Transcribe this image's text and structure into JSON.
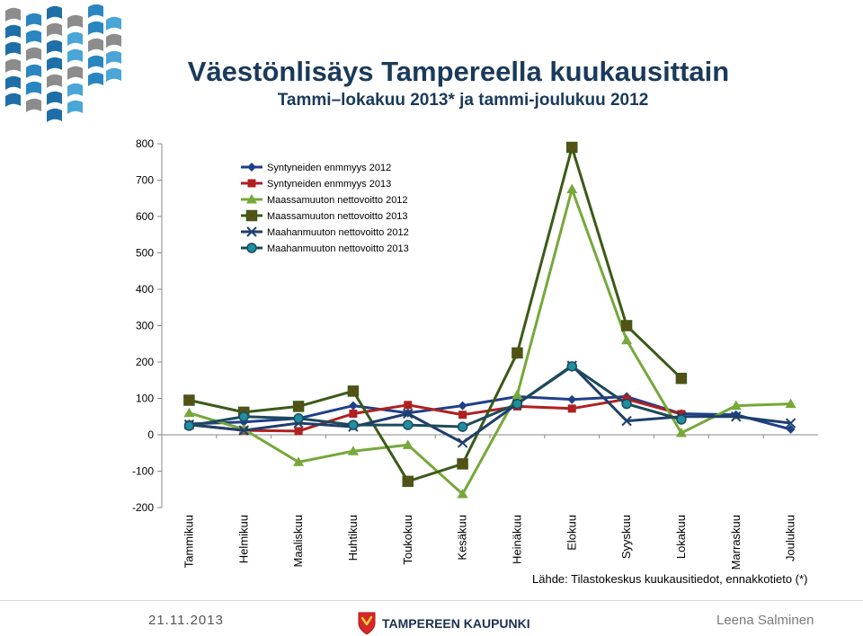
{
  "header": {
    "title": "Väestönlisäys Tampereella kuukausittain",
    "subtitle": "Tammi–lokakuu 2013* ja tammi-joulukuu 2012"
  },
  "footer": {
    "source": "Lähde: Tilastokeskus kuukausitiedot, ennakkotieto (*)",
    "date": "21.11.2013",
    "brand": "TAMPEREEN KAUPUNKI",
    "author": "Leena Salminen"
  },
  "chart_data": {
    "type": "line",
    "title": "",
    "xlabel": "",
    "ylabel": "",
    "ylim": [
      -200,
      800
    ],
    "yticks": [
      -200,
      -100,
      0,
      100,
      200,
      300,
      400,
      500,
      600,
      700,
      800
    ],
    "grid": false,
    "legend": "top-left",
    "categories": [
      "Tammikuu",
      "Helmikuu",
      "Maaliskuu",
      "Huhtikuu",
      "Toukokuu",
      "Kesäkuu",
      "Heinäkuu",
      "Elokuu",
      "Syyskuu",
      "Lokakuu",
      "Marraskuu",
      "Joulukuu"
    ],
    "series": [
      {
        "name": "Syntyneiden enmmyys 2012",
        "color": "#1f3f8a",
        "marker": "diamond",
        "values": [
          30,
          35,
          45,
          80,
          60,
          80,
          105,
          97,
          105,
          58,
          55,
          15
        ]
      },
      {
        "name": "Syntyneiden enmmyys 2013",
        "color": "#b02020",
        "marker": "square",
        "values": [
          28,
          12,
          10,
          58,
          82,
          55,
          78,
          72,
          98,
          57,
          null,
          null
        ]
      },
      {
        "name": "Maassamuuton nettovoitto 2012",
        "color": "#76a83a",
        "marker": "triangle",
        "values": [
          60,
          15,
          -75,
          -45,
          -28,
          -163,
          110,
          675,
          260,
          5,
          80,
          85
        ]
      },
      {
        "name": "Maassamuuton nettovoitto 2013",
        "color": "#3b5a18",
        "marker": "square-x",
        "values": [
          95,
          62,
          78,
          120,
          -128,
          -80,
          225,
          790,
          300,
          155,
          null,
          null
        ]
      },
      {
        "name": "Maahanmuuton nettovoitto 2012",
        "color": "#1f3f6a",
        "marker": "x",
        "values": [
          28,
          12,
          32,
          22,
          58,
          -22,
          85,
          190,
          38,
          50,
          50,
          32
        ]
      },
      {
        "name": "Maahanmuuton nettovoitto 2013",
        "color": "#1d4a5a",
        "marker": "circle",
        "values": [
          25,
          50,
          45,
          27,
          27,
          22,
          85,
          188,
          85,
          42,
          null,
          null
        ]
      }
    ]
  }
}
